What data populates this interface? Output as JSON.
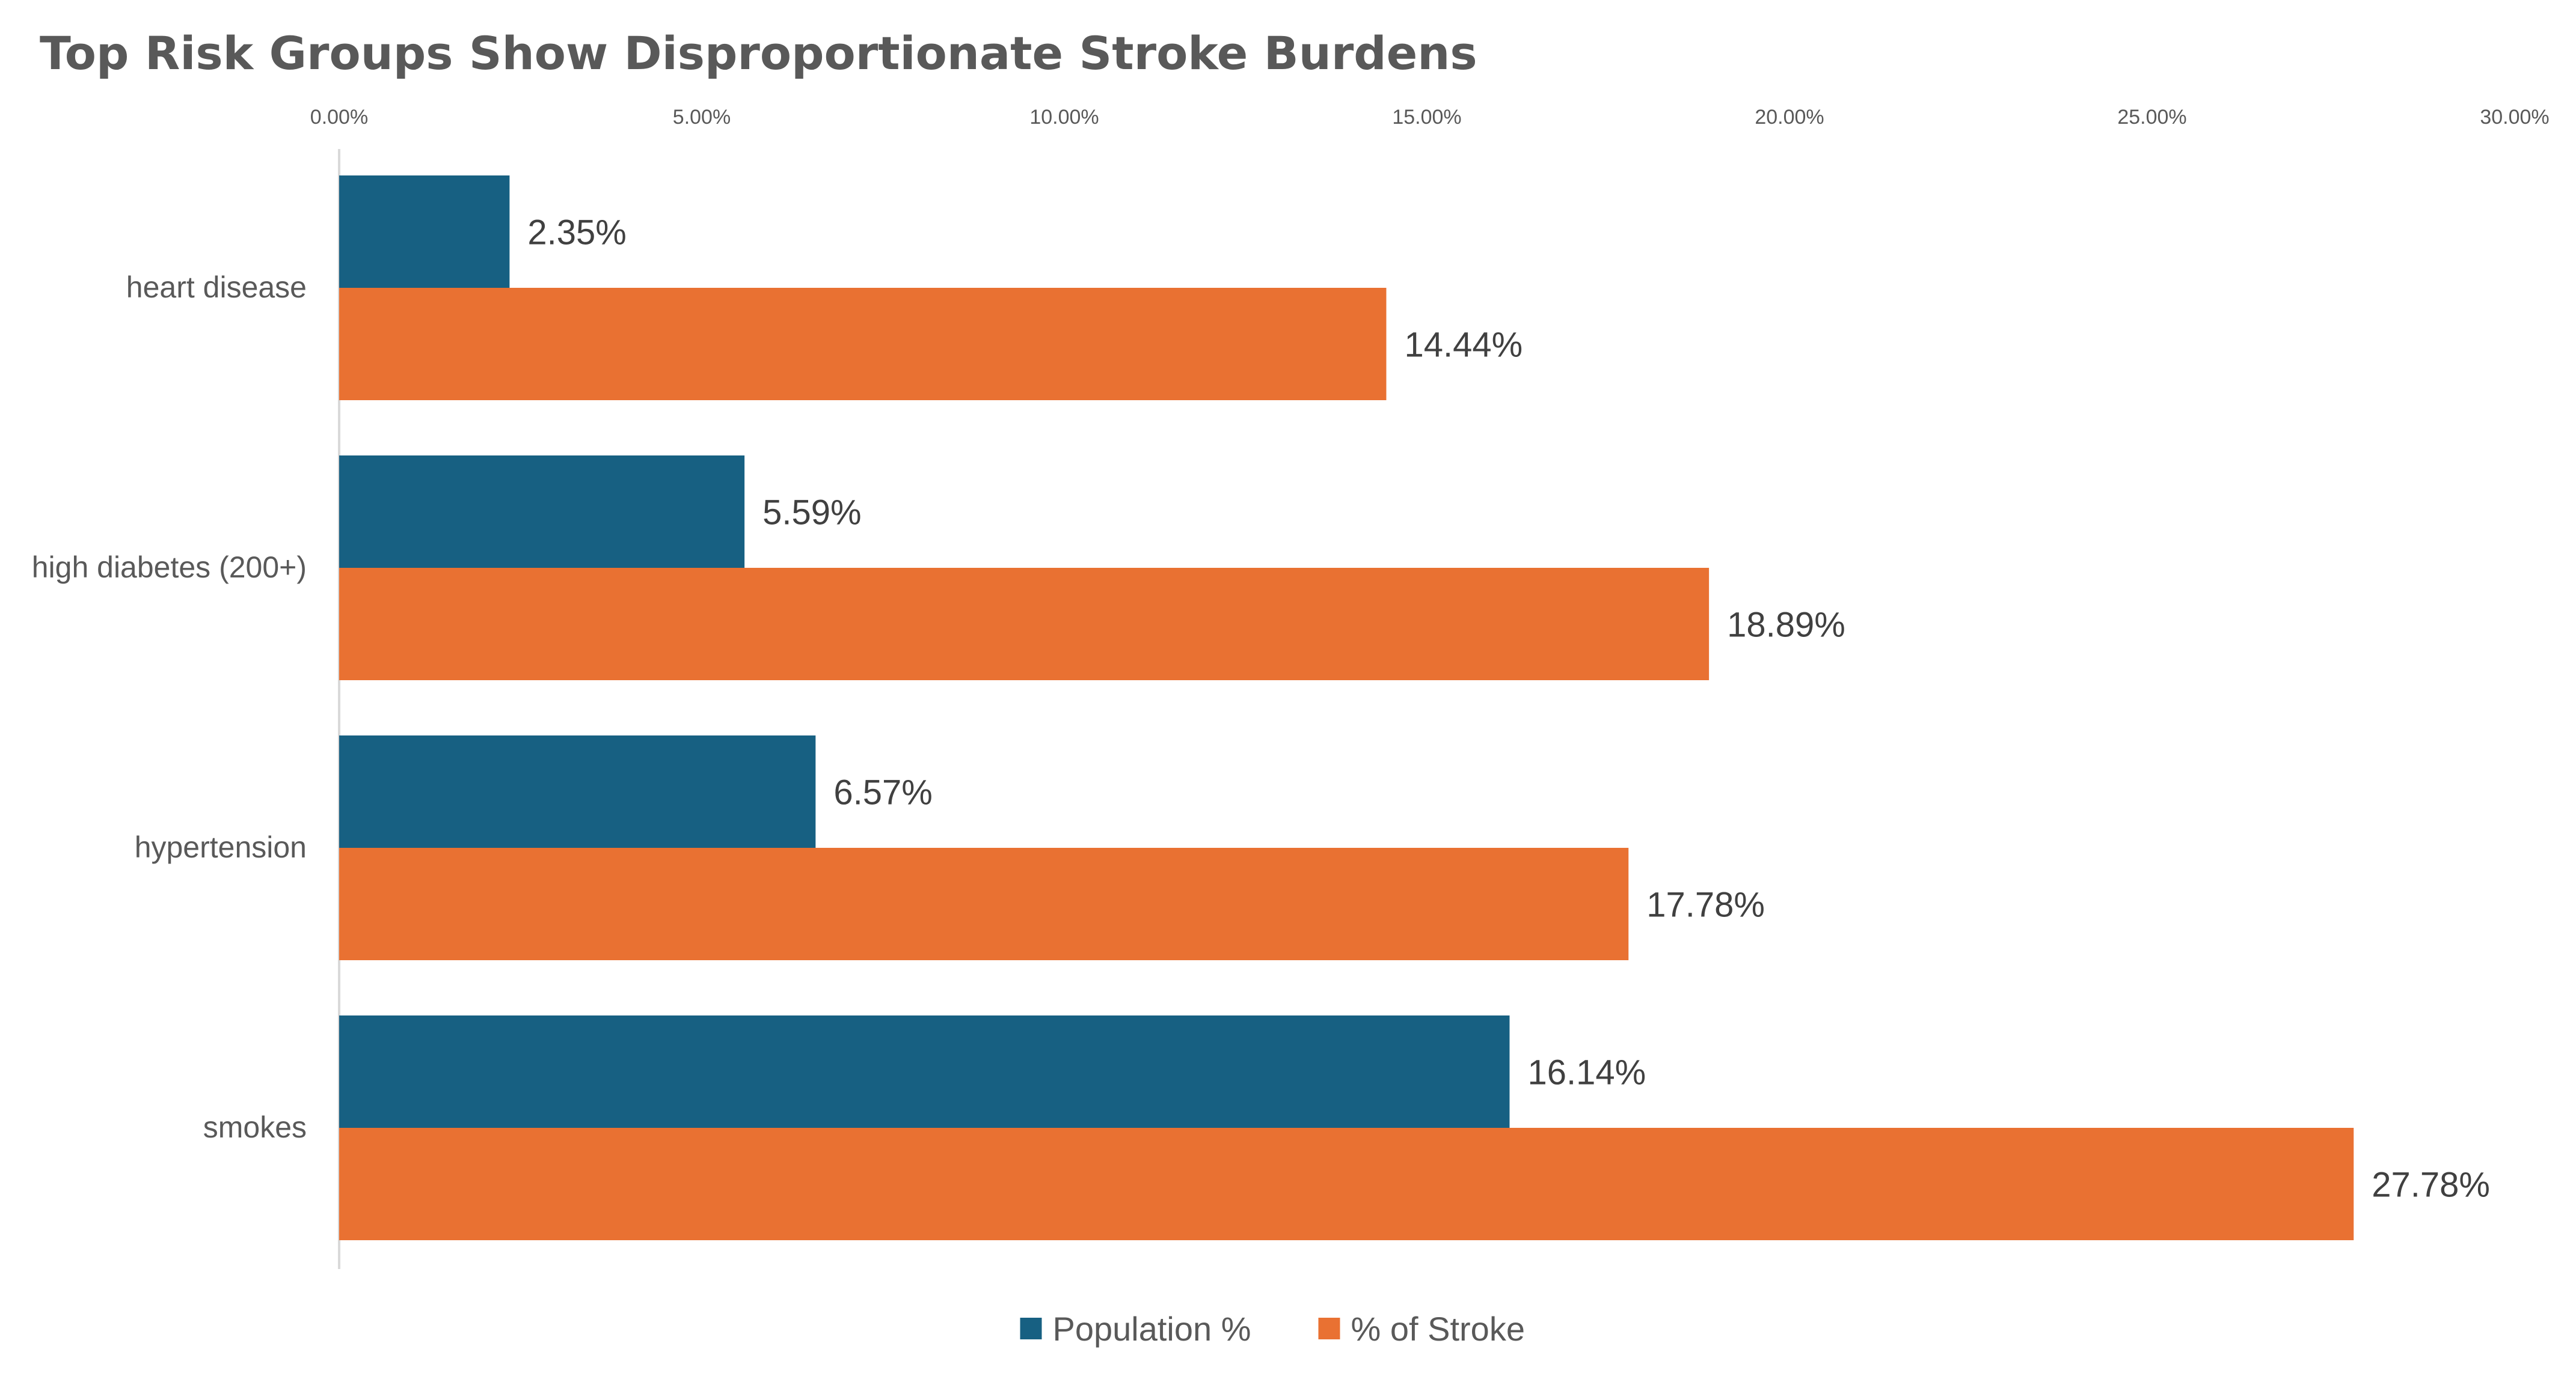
{
  "chart_data": {
    "type": "bar",
    "orientation": "horizontal",
    "title": "Top Risk Groups Show Disproportionate Stroke Burdens",
    "categories": [
      "heart disease",
      "high diabetes (200+)",
      "hypertension",
      "smokes"
    ],
    "series": [
      {
        "name": "Population %",
        "color": "#176082",
        "values": [
          2.35,
          5.59,
          6.57,
          16.14
        ],
        "labels": [
          "2.35%",
          "5.59%",
          "6.57%",
          "16.14%"
        ]
      },
      {
        "name": "% of Stroke",
        "color": "#E97132",
        "values": [
          14.44,
          18.89,
          17.78,
          27.78
        ],
        "labels": [
          "14.44%",
          "18.89%",
          "17.78%",
          "27.78%"
        ]
      }
    ],
    "x_axis": {
      "position": "top",
      "range": [
        0,
        30
      ],
      "ticks": [
        0,
        5,
        10,
        15,
        20,
        25,
        30
      ],
      "tick_labels": [
        "0.00%",
        "5.00%",
        "10.00%",
        "15.00%",
        "20.00%",
        "25.00%",
        "30.00%"
      ]
    },
    "grid": false,
    "legend": {
      "position": "bottom",
      "items": [
        "Population %",
        "% of Stroke"
      ]
    }
  }
}
